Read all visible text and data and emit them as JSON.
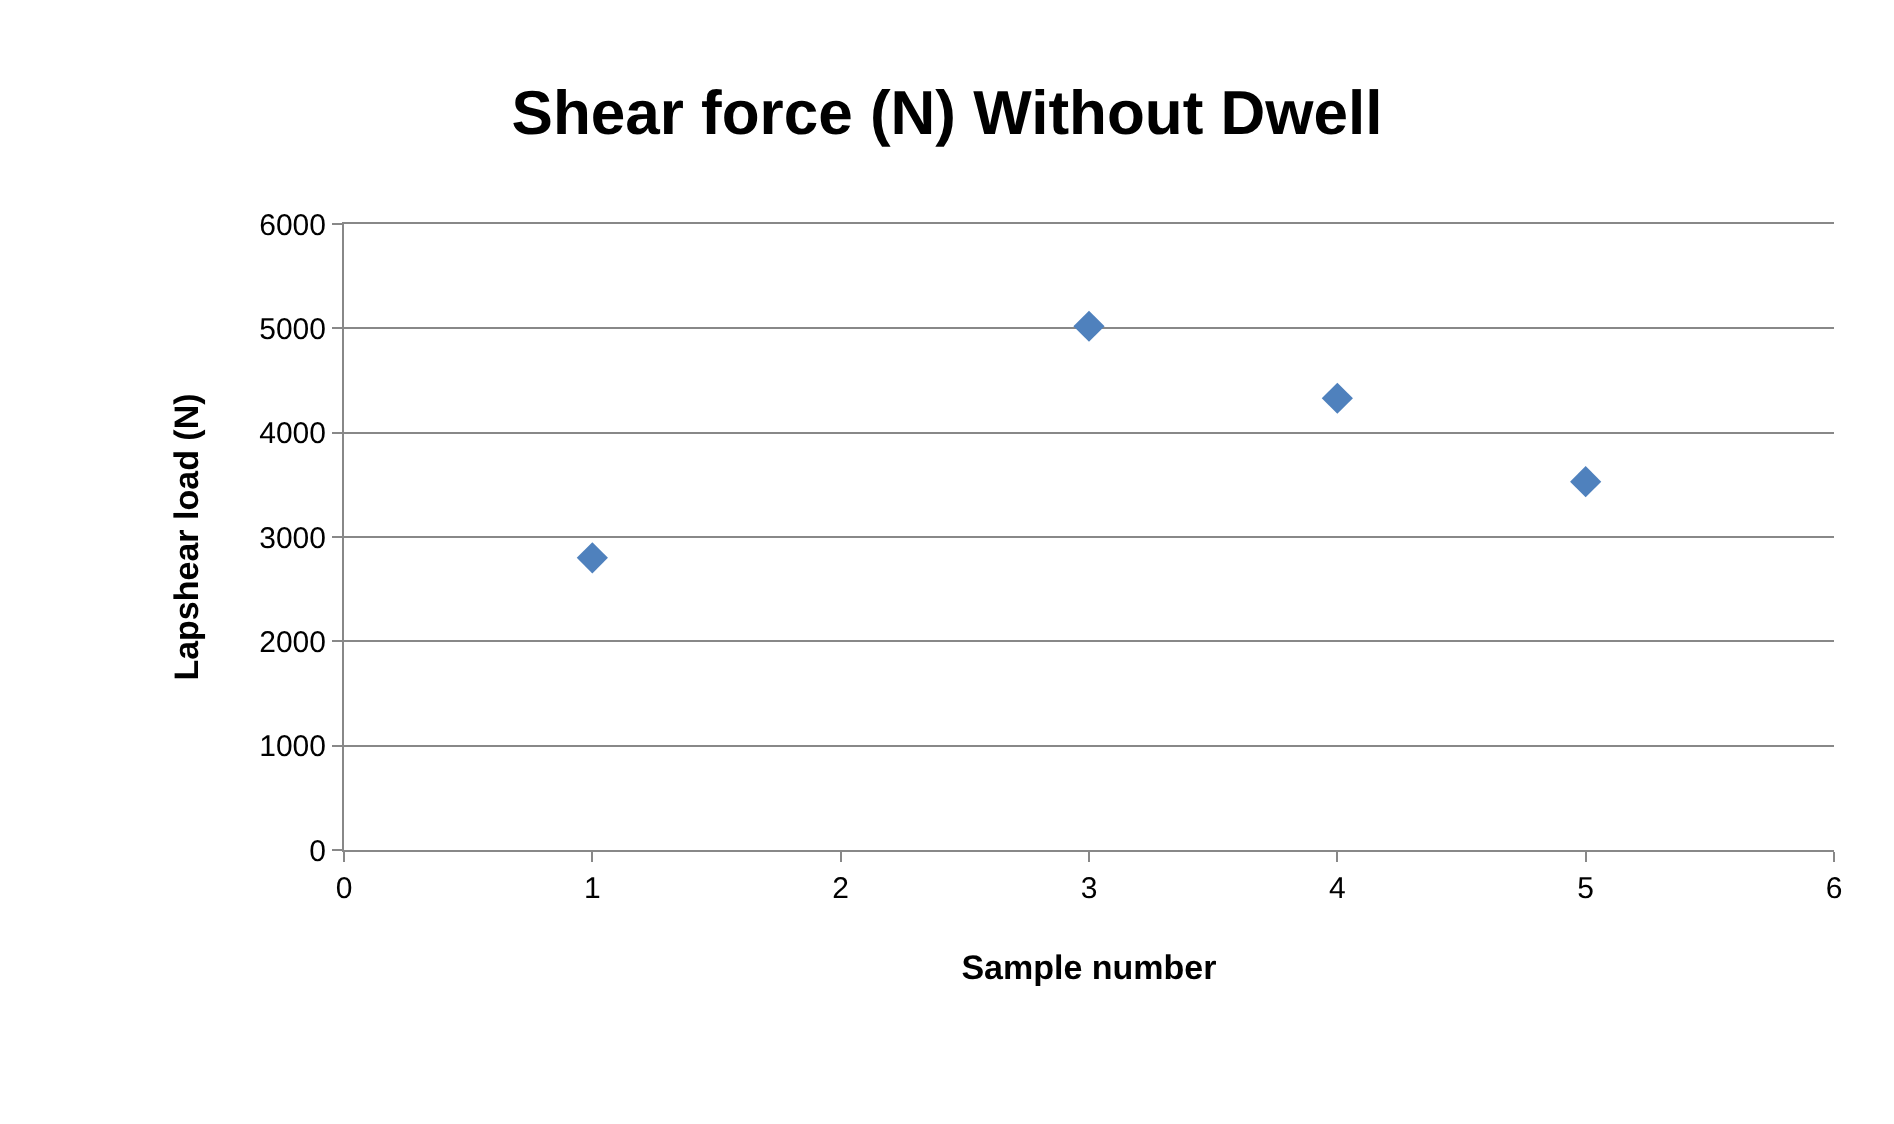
{
  "chart_data": {
    "type": "scatter",
    "title": "Shear force (N) Without Dwell",
    "xlabel": "Sample number",
    "ylabel": "Lapshear load (N)",
    "x": [
      1,
      3,
      4,
      5
    ],
    "series": [
      {
        "color": "#4f81bd",
        "values": [
          2800,
          5020,
          4330,
          3530
        ]
      }
    ],
    "xlim": [
      0,
      6
    ],
    "xticks": [
      0,
      1,
      2,
      3,
      4,
      5,
      6
    ],
    "ylim": [
      0,
      6000
    ],
    "yticks": [
      0,
      1000,
      2000,
      3000,
      4000,
      5000,
      6000
    ],
    "grid": "y",
    "marker": "diamond"
  }
}
